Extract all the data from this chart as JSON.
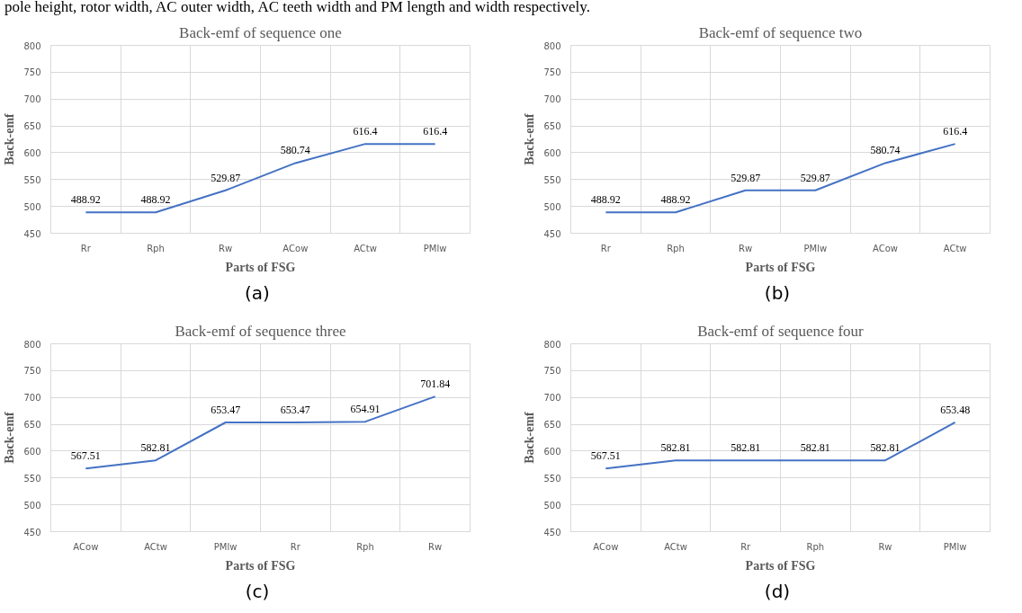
{
  "chart_data": [
    {
      "type": "line",
      "title": "Back-emf of sequence one",
      "xlabel": "Parts of FSG",
      "ylabel": "Back-emf",
      "annotations": [
        "pole height, rotor width, AC outer width, AC teeth width and PM length and width respectively.",
        "(a)"
      ],
      "categories": [
        "Rr",
        "Rph",
        "Rw",
        "ACow",
        "ACtw",
        "PMlw"
      ],
      "series": [
        {
          "color": "#4472c4",
          "values": [
            488.92,
            488.92,
            529.87,
            580.74,
            616.4,
            616.4
          ]
        }
      ],
      "ylim": [
        450,
        800
      ],
      "yticks": [
        450,
        500,
        550,
        600,
        650,
        700,
        750,
        800
      ],
      "grid": true,
      "data_labels": true,
      "marker": "none"
    },
    {
      "type": "line",
      "title": "Back-emf of sequence two",
      "xlabel": "Parts of FSG",
      "ylabel": "Back-emf",
      "annotations": [
        "(b)"
      ],
      "categories": [
        "Rr",
        "Rph",
        "Rw",
        "PMlw",
        "ACow",
        "ACtw"
      ],
      "series": [
        {
          "color": "#4472c4",
          "values": [
            488.92,
            488.92,
            529.87,
            529.87,
            580.74,
            616.4
          ]
        }
      ],
      "ylim": [
        450,
        800
      ],
      "yticks": [
        450,
        500,
        550,
        600,
        650,
        700,
        750,
        800
      ],
      "grid": true,
      "data_labels": true,
      "marker": "none"
    },
    {
      "type": "line",
      "title": "Back-emf of sequence three",
      "xlabel": "Parts of FSG",
      "ylabel": "Back-emf",
      "annotations": [
        "(c)"
      ],
      "categories": [
        "ACow",
        "ACtw",
        "PMlw",
        "Rr",
        "Rph",
        "Rw"
      ],
      "series": [
        {
          "color": "#4472c4",
          "values": [
            567.51,
            582.81,
            653.47,
            653.47,
            654.91,
            701.84
          ]
        }
      ],
      "ylim": [
        450,
        800
      ],
      "yticks": [
        450,
        500,
        550,
        600,
        650,
        700,
        750,
        800
      ],
      "grid": true,
      "data_labels": true,
      "marker": "none"
    },
    {
      "type": "line",
      "title": "Back-emf of sequence four",
      "xlabel": "Parts of FSG",
      "ylabel": "Back-emf",
      "annotations": [
        "(d)"
      ],
      "categories": [
        "ACow",
        "ACtw",
        "Rr",
        "Rph",
        "Rw",
        "PMlw"
      ],
      "series": [
        {
          "color": "#4472c4",
          "values": [
            567.51,
            582.81,
            582.81,
            582.81,
            582.81,
            653.48
          ]
        }
      ],
      "ylim": [
        450,
        800
      ],
      "yticks": [
        450,
        500,
        550,
        600,
        650,
        700,
        750,
        800
      ],
      "grid": true,
      "data_labels": true,
      "marker": "none"
    }
  ]
}
